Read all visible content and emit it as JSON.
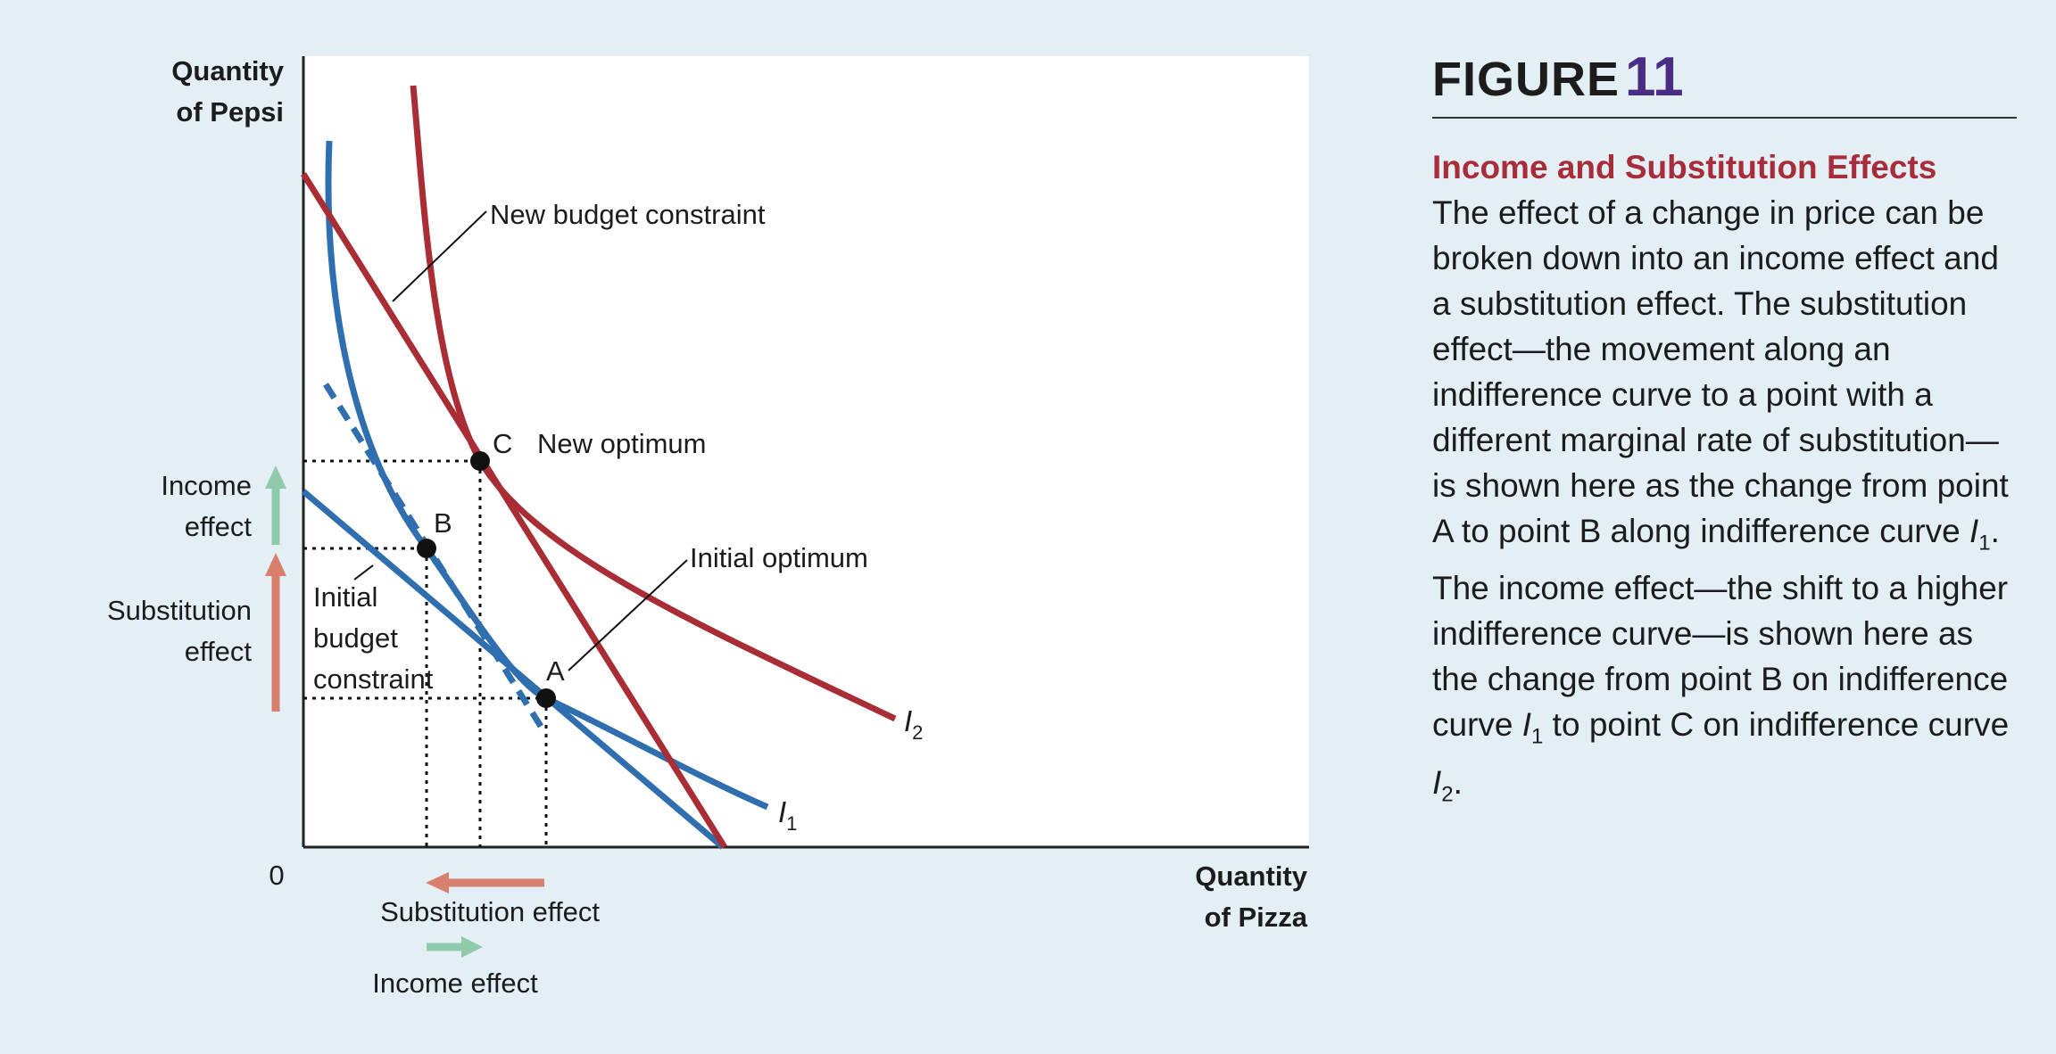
{
  "figure": {
    "label": "FIGURE",
    "number": "11"
  },
  "caption": {
    "title": "Income and Substitution Effects",
    "body_1": "The effect of a change in price can be broken down into an income effect and a substitution effect. The substitution effect—the movement along an indifference curve to a point with a different marginal rate of substitution—is shown here as the change from point A to point B along indifference curve ",
    "i_letter": "I",
    "sub_1": "1",
    "body_2": ". The income effect—the shift to a higher indifference curve—is shown here as the change from point B on indifference curve ",
    "body_3": " to point C on indifference curve ",
    "sub_2": "2",
    "body_end": "."
  },
  "axes": {
    "y_label_line1": "Quantity",
    "y_label_line2": "of Pepsi",
    "x_label_line1": "Quantity",
    "x_label_line2": "of Pizza",
    "origin": "0"
  },
  "labels": {
    "new_budget": "New budget constraint",
    "new_optimum": "New optimum",
    "initial_optimum": "Initial optimum",
    "initial_budget_1": "Initial",
    "initial_budget_2": "budget",
    "initial_budget_3": "constraint",
    "point_a": "A",
    "point_b": "B",
    "point_c": "C",
    "curve_i": "I",
    "curve_1_sub": "1",
    "curve_2_sub": "2"
  },
  "effects": {
    "income_1": "Income",
    "income_2": "effect",
    "subst_1": "Substitution",
    "subst_2": "effect",
    "subst_horizontal": "Substitution effect",
    "income_horizontal": "Income effect"
  },
  "colors": {
    "blue": "#2f6faf",
    "red": "#a82d35",
    "green_arrow": "#8fcbab",
    "salmon_arrow": "#d97f6e",
    "plot_bg": "#ffffff",
    "page_bg": "#e3eff5"
  }
}
